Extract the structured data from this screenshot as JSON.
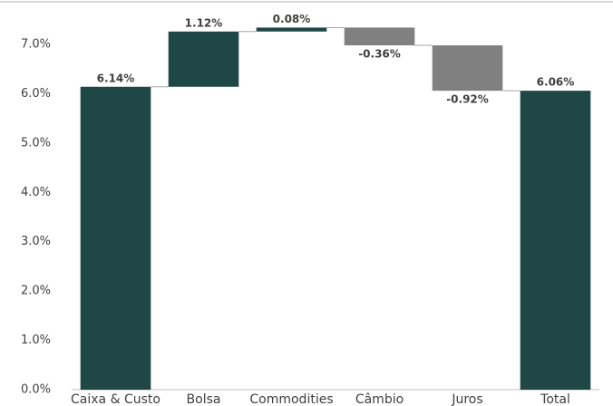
{
  "chart_data": {
    "type": "waterfall",
    "categories": [
      "Caixa & Custo",
      "Bolsa",
      "Commodities",
      "Câmbio",
      "Juros",
      "Total"
    ],
    "values": [
      6.14,
      1.12,
      0.08,
      -0.36,
      -0.92,
      6.06
    ],
    "value_labels": [
      "6.14%",
      "1.12%",
      "0.08%",
      "-0.36%",
      "-0.92%",
      "6.06%"
    ],
    "measure": [
      "absolute",
      "relative",
      "relative",
      "relative",
      "relative",
      "total"
    ],
    "colors": {
      "increase": "#1f4746",
      "decrease": "#808080",
      "total": "#1f4746"
    },
    "ylim": [
      0,
      7.8
    ],
    "yticks": [
      {
        "value": 0,
        "label": "0.0%"
      },
      {
        "value": 1,
        "label": "1.0%"
      },
      {
        "value": 2,
        "label": "2.0%"
      },
      {
        "value": 3,
        "label": "3.0%"
      },
      {
        "value": 4,
        "label": "4.0%"
      },
      {
        "value": 5,
        "label": "5.0%"
      },
      {
        "value": 6,
        "label": "6.0%"
      },
      {
        "value": 7,
        "label": "7.0%"
      }
    ]
  }
}
